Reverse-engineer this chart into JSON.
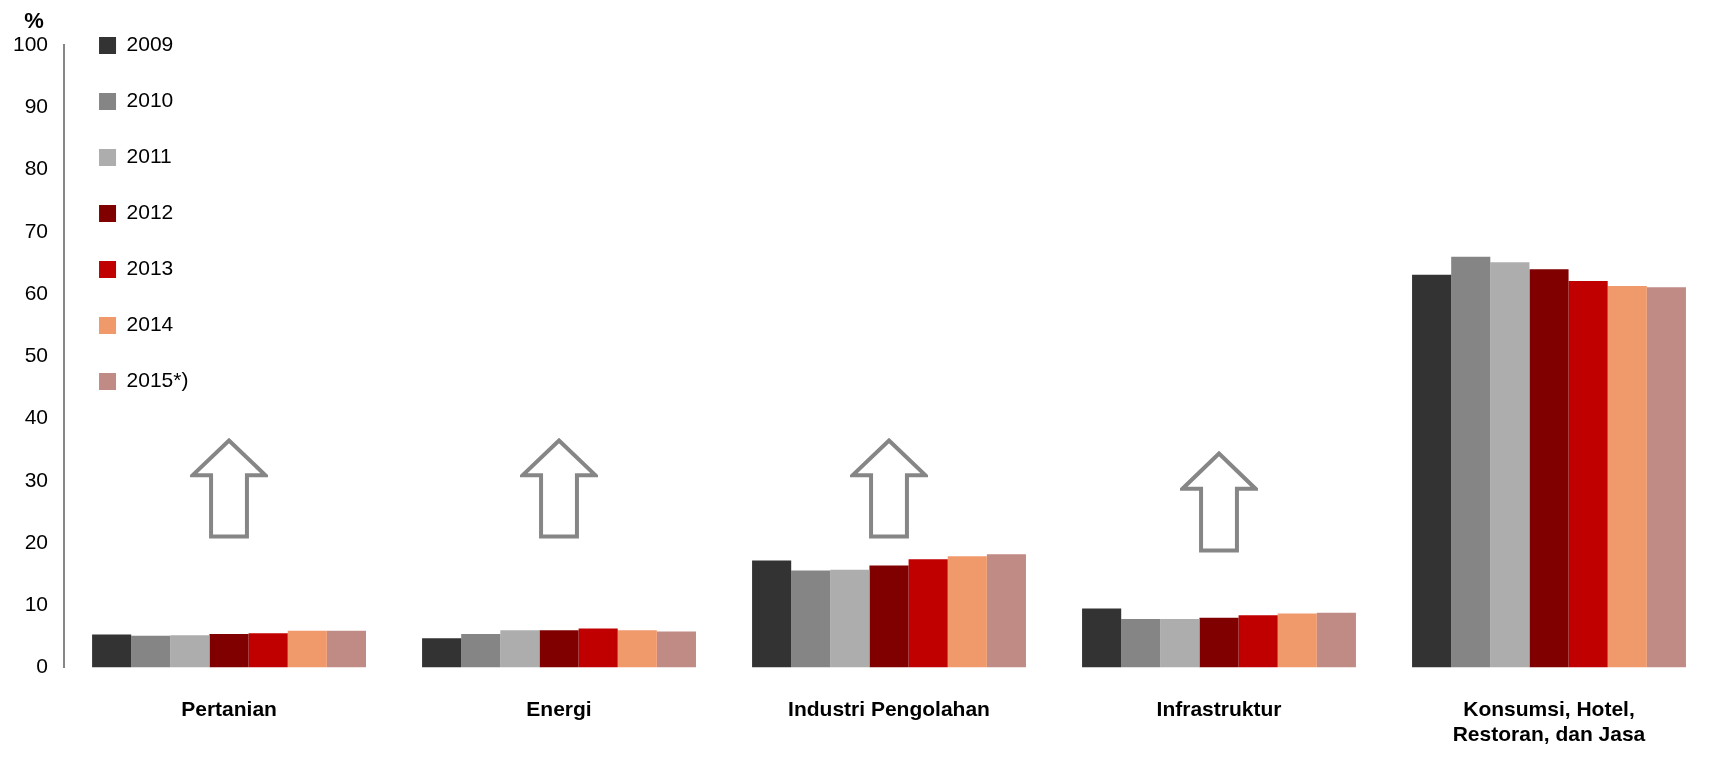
{
  "chart_data": {
    "type": "bar",
    "ylabel": "%",
    "categories": [
      "Pertanian",
      "Energi",
      "Industri Pengolahan",
      "Infrastruktur",
      "Konsumsi, Hotel, Restoran, dan Jasa"
    ],
    "series": [
      {
        "name": "2009",
        "color": "#333333",
        "values": [
          5.3,
          4.7,
          17.2,
          9.5,
          63.1
        ]
      },
      {
        "name": "2010",
        "color": "#858585",
        "values": [
          5.1,
          5.4,
          15.6,
          7.8,
          66.0
        ]
      },
      {
        "name": "2011",
        "color": "#adadad",
        "values": [
          5.2,
          6.0,
          15.7,
          7.8,
          65.1
        ]
      },
      {
        "name": "2012",
        "color": "#800000",
        "values": [
          5.4,
          6.0,
          16.4,
          8.0,
          64.0
        ]
      },
      {
        "name": "2013",
        "color": "#c00000",
        "values": [
          5.5,
          6.3,
          17.4,
          8.4,
          62.1
        ]
      },
      {
        "name": "2014",
        "color": "#f0996b",
        "values": [
          5.9,
          6.0,
          17.9,
          8.7,
          61.3
        ]
      },
      {
        "name": "2015*)",
        "color": "#c08a85",
        "values": [
          5.9,
          5.8,
          18.2,
          8.8,
          61.1
        ]
      }
    ],
    "ylim": [
      0,
      100
    ],
    "yticks": [
      0,
      10,
      20,
      30,
      40,
      50,
      60,
      70,
      80,
      90,
      100
    ],
    "grid": false,
    "legend": "top left"
  }
}
